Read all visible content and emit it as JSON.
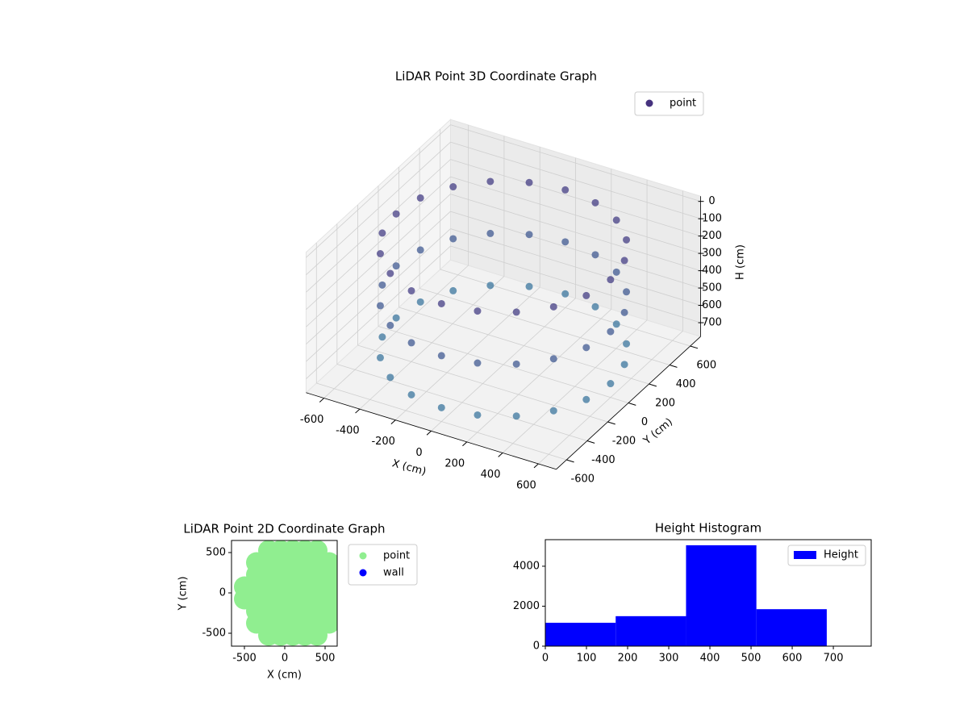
{
  "chart_data": [
    {
      "type": "scatter3d",
      "title": "LiDAR Point 3D Coordinate Graph",
      "xlabel": "X (cm)",
      "ylabel": "Y (cm)",
      "zlabel": "H (cm)",
      "series": [
        {
          "name": "point",
          "color": "#46327e",
          "x": [
            600,
            571,
            485,
            353,
            185,
            0,
            -185,
            -353,
            -485,
            -571,
            -600,
            -571,
            -485,
            -353,
            -185,
            0,
            185,
            353,
            485,
            571,
            600,
            571,
            485,
            353,
            185,
            0,
            -185,
            -353,
            -485,
            -571,
            -600,
            -571,
            -485,
            -353,
            -185,
            0,
            185,
            353,
            485,
            571,
            600,
            571,
            485,
            353,
            185,
            0,
            -185,
            -353,
            -485,
            -571,
            -600,
            -571,
            -485,
            -353,
            -185,
            0,
            185,
            353,
            485,
            571
          ],
          "y": [
            0,
            185,
            353,
            485,
            571,
            600,
            571,
            485,
            353,
            185,
            0,
            -185,
            -353,
            -485,
            -571,
            -600,
            -571,
            -485,
            -353,
            -185,
            0,
            185,
            353,
            485,
            571,
            600,
            571,
            485,
            353,
            185,
            0,
            -185,
            -353,
            -485,
            -571,
            -600,
            -571,
            -485,
            -353,
            -185,
            0,
            185,
            353,
            485,
            571,
            600,
            571,
            485,
            353,
            185,
            0,
            -185,
            -353,
            -485,
            -571,
            -600,
            -571,
            -485,
            -353,
            -185
          ],
          "z": [
            100,
            100,
            100,
            100,
            100,
            100,
            100,
            100,
            100,
            100,
            100,
            100,
            100,
            100,
            100,
            100,
            100,
            100,
            100,
            100,
            400,
            400,
            400,
            400,
            400,
            400,
            400,
            400,
            400,
            400,
            400,
            400,
            400,
            400,
            400,
            400,
            400,
            400,
            400,
            400,
            700,
            700,
            700,
            700,
            700,
            700,
            700,
            700,
            700,
            700,
            700,
            700,
            700,
            700,
            700,
            700,
            700,
            700,
            700,
            700
          ]
        }
      ],
      "xlim": [
        -700,
        700
      ],
      "ylim": [
        -700,
        700
      ],
      "zlim": [
        780,
        -30
      ],
      "xticks": [
        -600,
        -400,
        -200,
        0,
        200,
        400,
        600
      ],
      "yticks": [
        -600,
        -400,
        -200,
        0,
        200,
        400,
        600
      ],
      "zticks": [
        0,
        100,
        200,
        300,
        400,
        500,
        600,
        700
      ],
      "grid": true,
      "legend": "upper right"
    },
    {
      "type": "scatter",
      "title": "LiDAR Point 2D Coordinate Graph",
      "xlabel": "X (cm)",
      "ylabel": "Y (cm)",
      "series": [
        {
          "name": "point",
          "color": "#90ee90",
          "x": [
            -500,
            -500,
            -350,
            -350,
            -350,
            -350,
            -350,
            -350,
            -200,
            -200,
            -200,
            -200,
            -200,
            -200,
            -200,
            -200,
            -50,
            -50,
            -50,
            -50,
            -50,
            -50,
            -50,
            -50,
            100,
            100,
            100,
            100,
            100,
            100,
            100,
            100,
            250,
            250,
            250,
            250,
            250,
            250,
            250,
            250,
            400,
            400,
            400,
            400,
            400,
            400,
            400,
            400,
            550,
            550,
            550,
            550,
            550,
            550
          ],
          "y": [
            -75,
            75,
            -375,
            -225,
            -75,
            75,
            225,
            375,
            -525,
            -375,
            -225,
            -75,
            75,
            225,
            375,
            525,
            -525,
            -375,
            -225,
            -75,
            75,
            225,
            375,
            525,
            -525,
            -375,
            -225,
            -75,
            75,
            225,
            375,
            525,
            -525,
            -375,
            -225,
            -75,
            75,
            225,
            375,
            525,
            -525,
            -375,
            -225,
            -75,
            75,
            225,
            375,
            525,
            -375,
            -225,
            -75,
            75,
            225,
            375
          ]
        },
        {
          "name": "wall",
          "color": "#0000ff",
          "x": [],
          "y": []
        }
      ],
      "xlim": [
        -660,
        650
      ],
      "ylim": [
        -660,
        650
      ],
      "xticks": [
        -500,
        0,
        500
      ],
      "yticks": [
        -500,
        0,
        500
      ],
      "legend": "outside right"
    },
    {
      "type": "histogram",
      "title": "Height Histogram",
      "bins": [
        0,
        171,
        342,
        513,
        684
      ],
      "series": [
        {
          "name": "Height",
          "color": "#0000ff",
          "values": [
            1170,
            1500,
            5050,
            1850
          ]
        }
      ],
      "xlim": [
        0,
        792
      ],
      "ylim": [
        0,
        5330
      ],
      "xticks": [
        0,
        100,
        200,
        300,
        400,
        500,
        600,
        700
      ],
      "yticks": [
        0,
        2000,
        4000
      ],
      "legend": "upper right"
    }
  ]
}
